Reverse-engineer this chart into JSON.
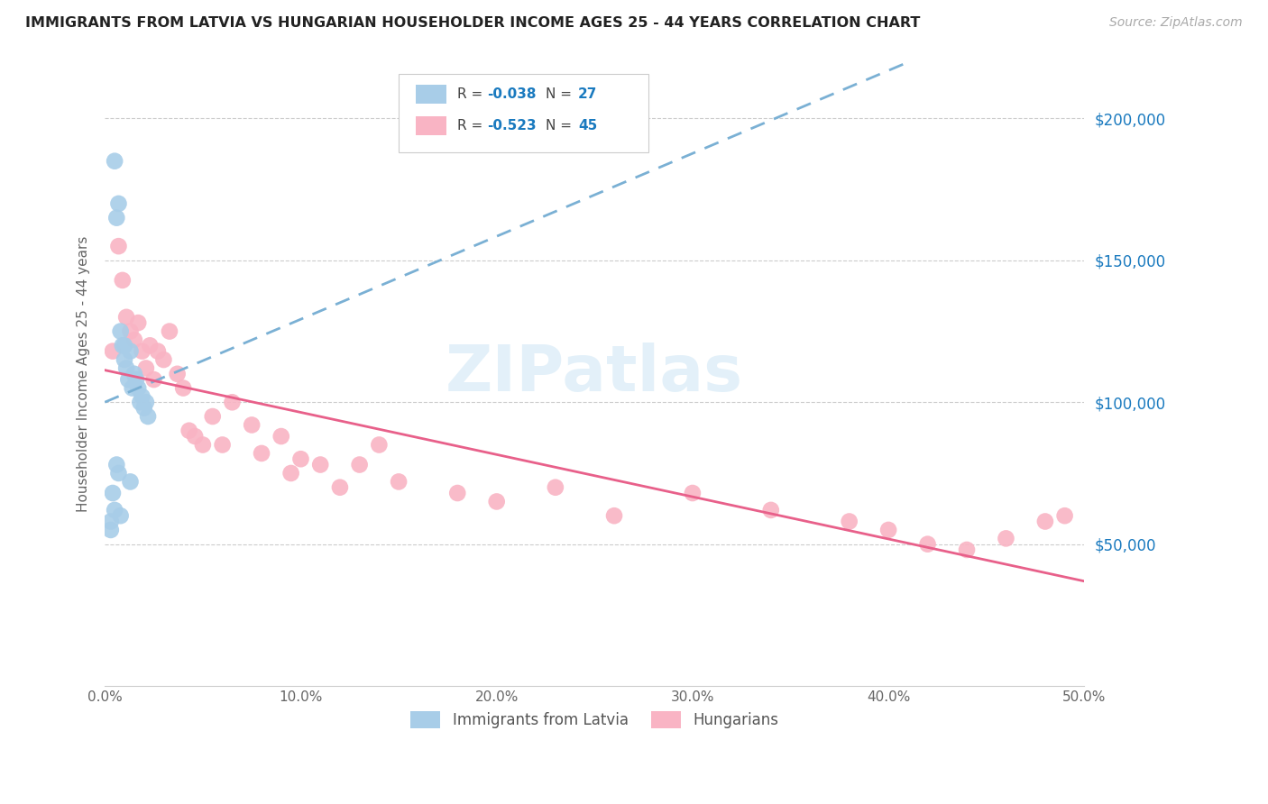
{
  "title": "IMMIGRANTS FROM LATVIA VS HUNGARIAN HOUSEHOLDER INCOME AGES 25 - 44 YEARS CORRELATION CHART",
  "source": "Source: ZipAtlas.com",
  "ylabel": "Householder Income Ages 25 - 44 years",
  "ytick_labels": [
    "$50,000",
    "$100,000",
    "$150,000",
    "$200,000"
  ],
  "ytick_values": [
    50000,
    100000,
    150000,
    200000
  ],
  "ylim": [
    0,
    220000
  ],
  "xlim": [
    0.0,
    0.5
  ],
  "xtick_values": [
    0.0,
    0.1,
    0.2,
    0.3,
    0.4,
    0.5
  ],
  "xtick_labels": [
    "0.0%",
    "10.0%",
    "20.0%",
    "30.0%",
    "40.0%",
    "50.0%"
  ],
  "legend_label1": "Immigrants from Latvia",
  "legend_label2": "Hungarians",
  "color_blue": "#a8cde8",
  "color_pink": "#f9b4c4",
  "color_blue_line": "#7ab0d4",
  "color_pink_line": "#e8608a",
  "watermark": "ZIPatlas",
  "latvia_x": [
    0.003,
    0.005,
    0.006,
    0.007,
    0.008,
    0.009,
    0.01,
    0.011,
    0.012,
    0.013,
    0.014,
    0.015,
    0.016,
    0.017,
    0.018,
    0.019,
    0.02,
    0.021,
    0.022,
    0.01,
    0.004,
    0.007,
    0.013,
    0.005,
    0.008,
    0.006,
    0.003
  ],
  "latvia_y": [
    55000,
    185000,
    165000,
    170000,
    125000,
    120000,
    115000,
    112000,
    108000,
    118000,
    105000,
    110000,
    108000,
    105000,
    100000,
    102000,
    98000,
    100000,
    95000,
    120000,
    68000,
    75000,
    72000,
    62000,
    60000,
    78000,
    58000
  ],
  "hungarian_x": [
    0.004,
    0.007,
    0.009,
    0.011,
    0.013,
    0.015,
    0.017,
    0.019,
    0.021,
    0.023,
    0.025,
    0.027,
    0.03,
    0.033,
    0.037,
    0.04,
    0.043,
    0.046,
    0.05,
    0.055,
    0.06,
    0.065,
    0.075,
    0.08,
    0.09,
    0.095,
    0.1,
    0.11,
    0.12,
    0.13,
    0.14,
    0.15,
    0.18,
    0.2,
    0.23,
    0.26,
    0.3,
    0.34,
    0.38,
    0.4,
    0.42,
    0.44,
    0.46,
    0.48,
    0.49
  ],
  "hungarian_y": [
    118000,
    155000,
    143000,
    130000,
    125000,
    122000,
    128000,
    118000,
    112000,
    120000,
    108000,
    118000,
    115000,
    125000,
    110000,
    105000,
    90000,
    88000,
    85000,
    95000,
    85000,
    100000,
    92000,
    82000,
    88000,
    75000,
    80000,
    78000,
    70000,
    78000,
    85000,
    72000,
    68000,
    65000,
    70000,
    60000,
    68000,
    62000,
    58000,
    55000,
    50000,
    48000,
    52000,
    58000,
    60000
  ]
}
